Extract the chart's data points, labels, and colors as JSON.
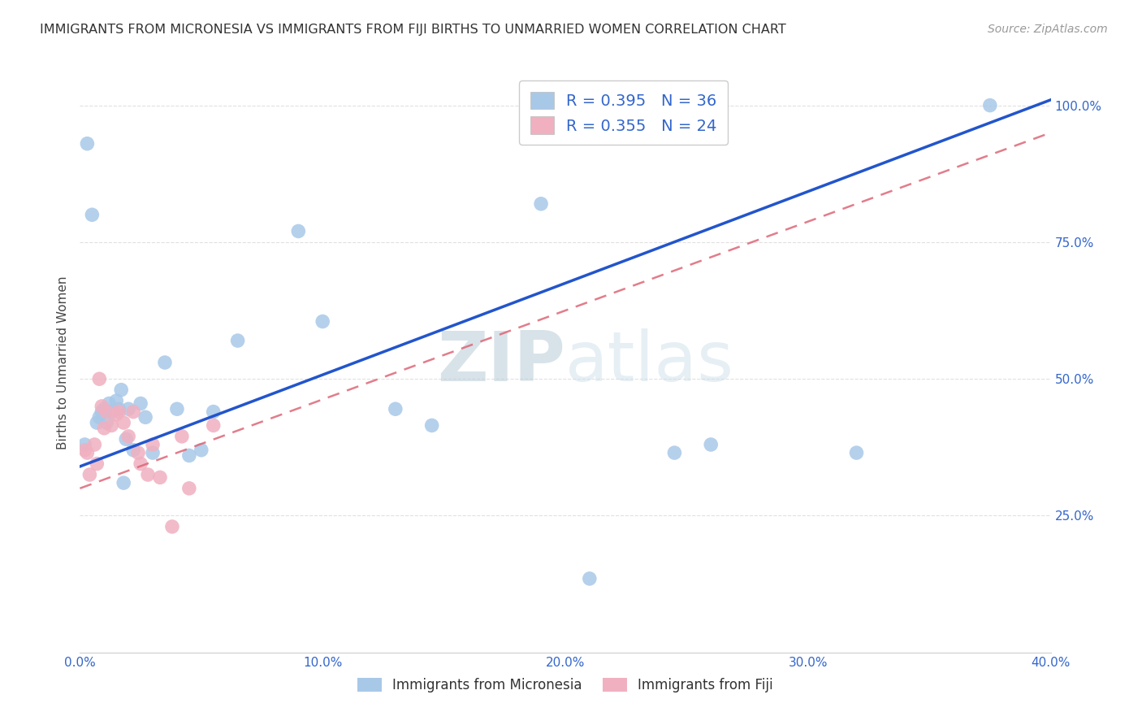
{
  "title": "IMMIGRANTS FROM MICRONESIA VS IMMIGRANTS FROM FIJI BIRTHS TO UNMARRIED WOMEN CORRELATION CHART",
  "source": "Source: ZipAtlas.com",
  "ylabel": "Births to Unmarried Women",
  "micronesia_label": "Immigrants from Micronesia",
  "fiji_label": "Immigrants from Fiji",
  "legend_r_micro": "R = 0.395",
  "legend_n_micro": "N = 36",
  "legend_r_fiji": "R = 0.355",
  "legend_n_fiji": "N = 24",
  "micronesia_color": "#a8c8e8",
  "fiji_color": "#f0b0c0",
  "trendline_micro_color": "#2255cc",
  "trendline_fiji_color": "#dd6677",
  "text_blue": "#3366cc",
  "watermark_color": "#d8e8f4",
  "background": "#ffffff",
  "grid_color": "#dddddd",
  "xlim": [
    0.0,
    0.4
  ],
  "ylim": [
    0.0,
    1.06
  ],
  "micro_trendline_x0": 0.0,
  "micro_trendline_y0": 0.34,
  "micro_trendline_x1": 0.4,
  "micro_trendline_y1": 1.01,
  "fiji_trendline_x0": 0.0,
  "fiji_trendline_y0": 0.3,
  "fiji_trendline_x1": 0.4,
  "fiji_trendline_y1": 0.95,
  "micro_x": [
    0.002,
    0.003,
    0.005,
    0.007,
    0.008,
    0.009,
    0.01,
    0.011,
    0.012,
    0.013,
    0.015,
    0.016,
    0.017,
    0.018,
    0.019,
    0.02,
    0.022,
    0.025,
    0.027,
    0.03,
    0.035,
    0.04,
    0.045,
    0.05,
    0.055,
    0.065,
    0.09,
    0.1,
    0.13,
    0.145,
    0.19,
    0.21,
    0.245,
    0.26,
    0.32,
    0.375
  ],
  "micro_y": [
    0.38,
    0.93,
    0.8,
    0.42,
    0.43,
    0.44,
    0.445,
    0.42,
    0.455,
    0.44,
    0.46,
    0.445,
    0.48,
    0.31,
    0.39,
    0.445,
    0.37,
    0.455,
    0.43,
    0.365,
    0.53,
    0.445,
    0.36,
    0.37,
    0.44,
    0.57,
    0.77,
    0.605,
    0.445,
    0.415,
    0.82,
    0.135,
    0.365,
    0.38,
    0.365,
    1.0
  ],
  "fiji_x": [
    0.002,
    0.003,
    0.004,
    0.006,
    0.007,
    0.008,
    0.009,
    0.01,
    0.011,
    0.013,
    0.015,
    0.016,
    0.018,
    0.02,
    0.022,
    0.024,
    0.025,
    0.028,
    0.03,
    0.033,
    0.038,
    0.042,
    0.045,
    0.055
  ],
  "fiji_y": [
    0.37,
    0.365,
    0.325,
    0.38,
    0.345,
    0.5,
    0.45,
    0.41,
    0.44,
    0.415,
    0.435,
    0.44,
    0.42,
    0.395,
    0.44,
    0.365,
    0.345,
    0.325,
    0.38,
    0.32,
    0.23,
    0.395,
    0.3,
    0.415
  ]
}
